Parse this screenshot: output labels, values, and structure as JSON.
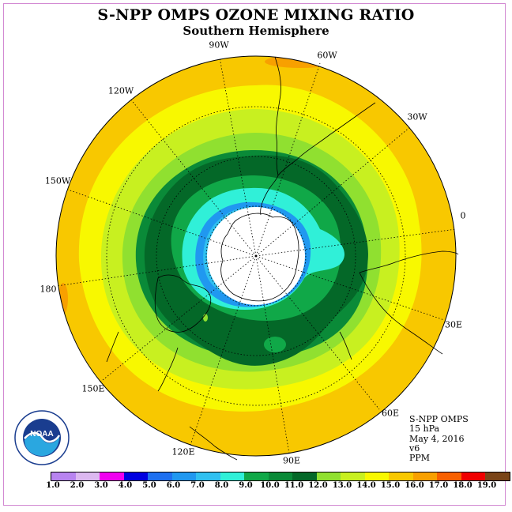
{
  "header": {
    "title": "S-NPP OMPS OZONE MIXING RATIO",
    "subtitle": "Southern Hemisphere"
  },
  "longitude_labels": [
    "0",
    "30W",
    "60W",
    "90W",
    "120W",
    "150W",
    "180",
    "150E",
    "120E",
    "90E",
    "60E",
    "30E"
  ],
  "info": {
    "instrument": "S-NPP OMPS",
    "pressure_level": "15 hPa",
    "date": "May 4, 2016",
    "version": "v6",
    "units": "PPM"
  },
  "colorbar": {
    "ticks": [
      "1.0",
      "2.0",
      "3.0",
      "4.0",
      "5.0",
      "6.0",
      "7.0",
      "8.0",
      "9.0",
      "10.0",
      "11.0",
      "12.0",
      "13.0",
      "14.0",
      "15.0",
      "16.0",
      "17.0",
      "18.0",
      "19.0"
    ],
    "colors": [
      "#b884f0",
      "#dcb8f0",
      "#f000f0",
      "#0000e0",
      "#1e70f0",
      "#2098f0",
      "#30c0f0",
      "#30f0d8",
      "#10a848",
      "#0a8a38",
      "#046828",
      "#90e030",
      "#c8f020",
      "#f8f800",
      "#f8c800",
      "#f8a000",
      "#f86000",
      "#f00000",
      "#7a4418"
    ]
  },
  "logo": {
    "text": "NOAA",
    "icon": "noaa-logo-icon"
  }
}
